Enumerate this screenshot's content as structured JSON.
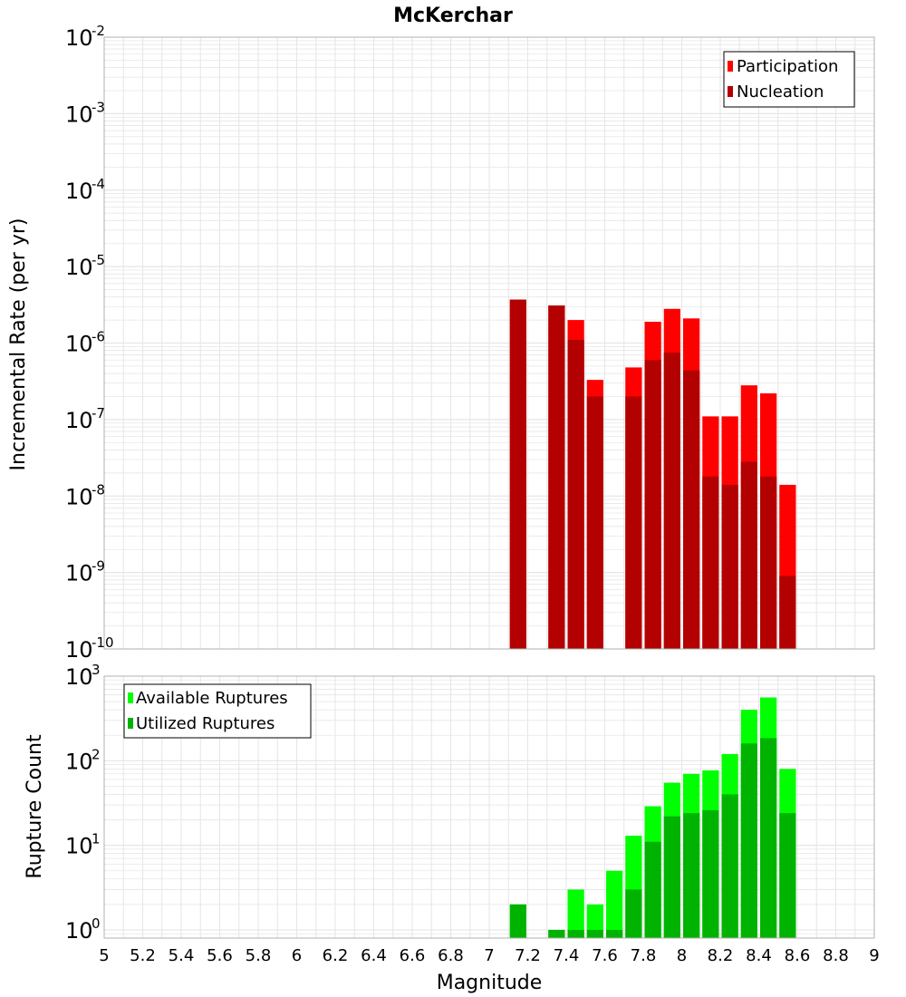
{
  "colors": {
    "participation": "#ff0000",
    "nucleation": "#b30000",
    "available": "#00ff00",
    "utilized": "#00b300",
    "grid": "#e6e6e6",
    "frame": "#b0b0b0"
  },
  "chart_data": [
    {
      "type": "bar",
      "title": "McKerchar",
      "xlabel": "",
      "ylabel": "Incremental Rate (per yr)",
      "yscale": "log",
      "ylim": [
        1e-10,
        0.01
      ],
      "xlim": [
        5,
        9
      ],
      "bin_width": 0.1,
      "legend": {
        "placement": "top-right",
        "entries": [
          "Participation",
          "Nucleation"
        ]
      },
      "y_tick_labels": [
        {
          "base": "10",
          "exp": "-10",
          "value": 1e-10
        },
        {
          "base": "10",
          "exp": "-9",
          "value": 1e-09
        },
        {
          "base": "10",
          "exp": "-8",
          "value": 1e-08
        },
        {
          "base": "10",
          "exp": "-7",
          "value": 1e-07
        },
        {
          "base": "10",
          "exp": "-6",
          "value": 1e-06
        },
        {
          "base": "10",
          "exp": "-5",
          "value": 1e-05
        },
        {
          "base": "10",
          "exp": "-4",
          "value": 0.0001
        },
        {
          "base": "10",
          "exp": "-3",
          "value": 0.001
        },
        {
          "base": "10",
          "exp": "-2",
          "value": 0.01
        }
      ],
      "x": [
        7.15,
        7.35,
        7.45,
        7.55,
        7.75,
        7.85,
        7.95,
        8.05,
        8.15,
        8.25,
        8.35,
        8.45,
        8.55
      ],
      "series": [
        {
          "name": "Participation",
          "values": [
            3.7e-06,
            3.1e-06,
            2e-06,
            3.3e-07,
            4.8e-07,
            1.9e-06,
            2.8e-06,
            2.1e-06,
            1.1e-07,
            1.1e-07,
            2.8e-07,
            2.2e-07,
            1.4e-08
          ]
        },
        {
          "name": "Nucleation",
          "values": [
            3.7e-06,
            3.1e-06,
            1.1e-06,
            2e-07,
            2e-07,
            6e-07,
            7.5e-07,
            4.4e-07,
            1.8e-08,
            1.4e-08,
            2.8e-08,
            1.8e-08,
            9e-10
          ]
        }
      ]
    },
    {
      "type": "bar",
      "title": "",
      "xlabel": "Magnitude",
      "ylabel": "Rupture Count",
      "yscale": "log",
      "ylim": [
        0.8,
        1000
      ],
      "xlim": [
        5,
        9
      ],
      "bin_width": 0.1,
      "legend": {
        "placement": "top-left",
        "entries": [
          "Available Ruptures",
          "Utilized Ruptures"
        ]
      },
      "y_tick_labels": [
        {
          "base": "10",
          "exp": "0",
          "value": 1
        },
        {
          "base": "10",
          "exp": "1",
          "value": 10
        },
        {
          "base": "10",
          "exp": "2",
          "value": 100
        },
        {
          "base": "10",
          "exp": "3",
          "value": 1000
        }
      ],
      "x_tick_labels": [
        "5",
        "5.2",
        "5.4",
        "5.6",
        "5.8",
        "6",
        "6.2",
        "6.4",
        "6.6",
        "6.8",
        "7",
        "7.2",
        "7.4",
        "7.6",
        "7.8",
        "8",
        "8.2",
        "8.4",
        "8.6",
        "8.8",
        "9"
      ],
      "x": [
        7.15,
        7.35,
        7.45,
        7.55,
        7.65,
        7.75,
        7.85,
        7.95,
        8.05,
        8.15,
        8.25,
        8.35,
        8.45,
        8.55
      ],
      "series": [
        {
          "name": "Available Ruptures",
          "values": [
            2,
            1,
            3,
            2,
            5,
            13,
            29,
            55,
            70,
            77,
            120,
            400,
            560,
            80
          ]
        },
        {
          "name": "Utilized Ruptures",
          "values": [
            2,
            1,
            1,
            1,
            1,
            3,
            11,
            22,
            24,
            26,
            40,
            160,
            185,
            24
          ]
        }
      ]
    }
  ]
}
